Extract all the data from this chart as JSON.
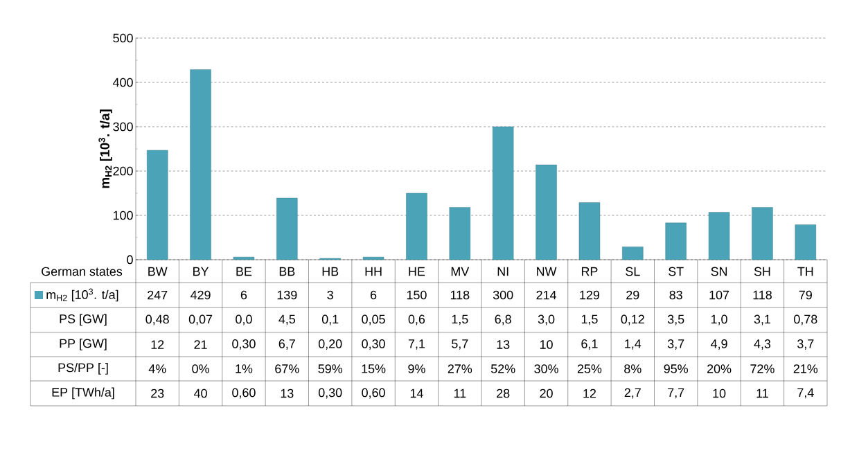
{
  "chart_data": {
    "type": "bar",
    "ylabel": "**m$_{H2}$ [10$^{3}$. t/a]**",
    "xlabel": "German states",
    "categories": [
      "BW",
      "BY",
      "BE",
      "BB",
      "HB",
      "HH",
      "HE",
      "MV",
      "NI",
      "NW",
      "RP",
      "SL",
      "ST",
      "SN",
      "SH",
      "TH"
    ],
    "series": [
      {
        "name": "m$_{H2}$ [10$^{3}$. t/a]",
        "color": "#4aa3b6",
        "values": [
          247,
          429,
          6,
          139,
          3,
          6,
          150,
          118,
          300,
          214,
          129,
          29,
          83,
          107,
          118,
          79
        ]
      }
    ],
    "ylim": [
      0,
      500
    ],
    "yticks": [
      0,
      100,
      200,
      300,
      400,
      500
    ],
    "grid": "y",
    "legend": "bottom",
    "data_labels": true,
    "annotations": [
      "PS [GW]",
      "0,48",
      "0,07",
      "0,0",
      "4,5",
      "0,1",
      "0,05",
      "0,6",
      "1,5",
      "6,8",
      "3,0",
      "1,5",
      "0,12",
      "3,5",
      "1,0",
      "3,1",
      "0,78",
      "PP [GW]",
      "12",
      "21",
      "0,30",
      "6,7",
      "0,20",
      "0,30",
      "7,1",
      "5,7",
      "13",
      "10",
      "6,1",
      "1,4",
      "3,7",
      "4,9",
      "4,3",
      "3,7",
      "PS/PP [-]",
      "4%",
      "0%",
      "1%",
      "67%",
      "59%",
      "15%",
      "9%",
      "27%",
      "52%",
      "30%",
      "25%",
      "8%",
      "95%",
      "20%",
      "72%",
      "21%",
      "EP [TWh/a]",
      "23",
      "40",
      "0,60",
      "13",
      "0,30",
      "0,60",
      "14",
      "11",
      "28",
      "20",
      "12",
      "2,7",
      "7,7",
      "10",
      "11",
      "7,4"
    ]
  }
}
